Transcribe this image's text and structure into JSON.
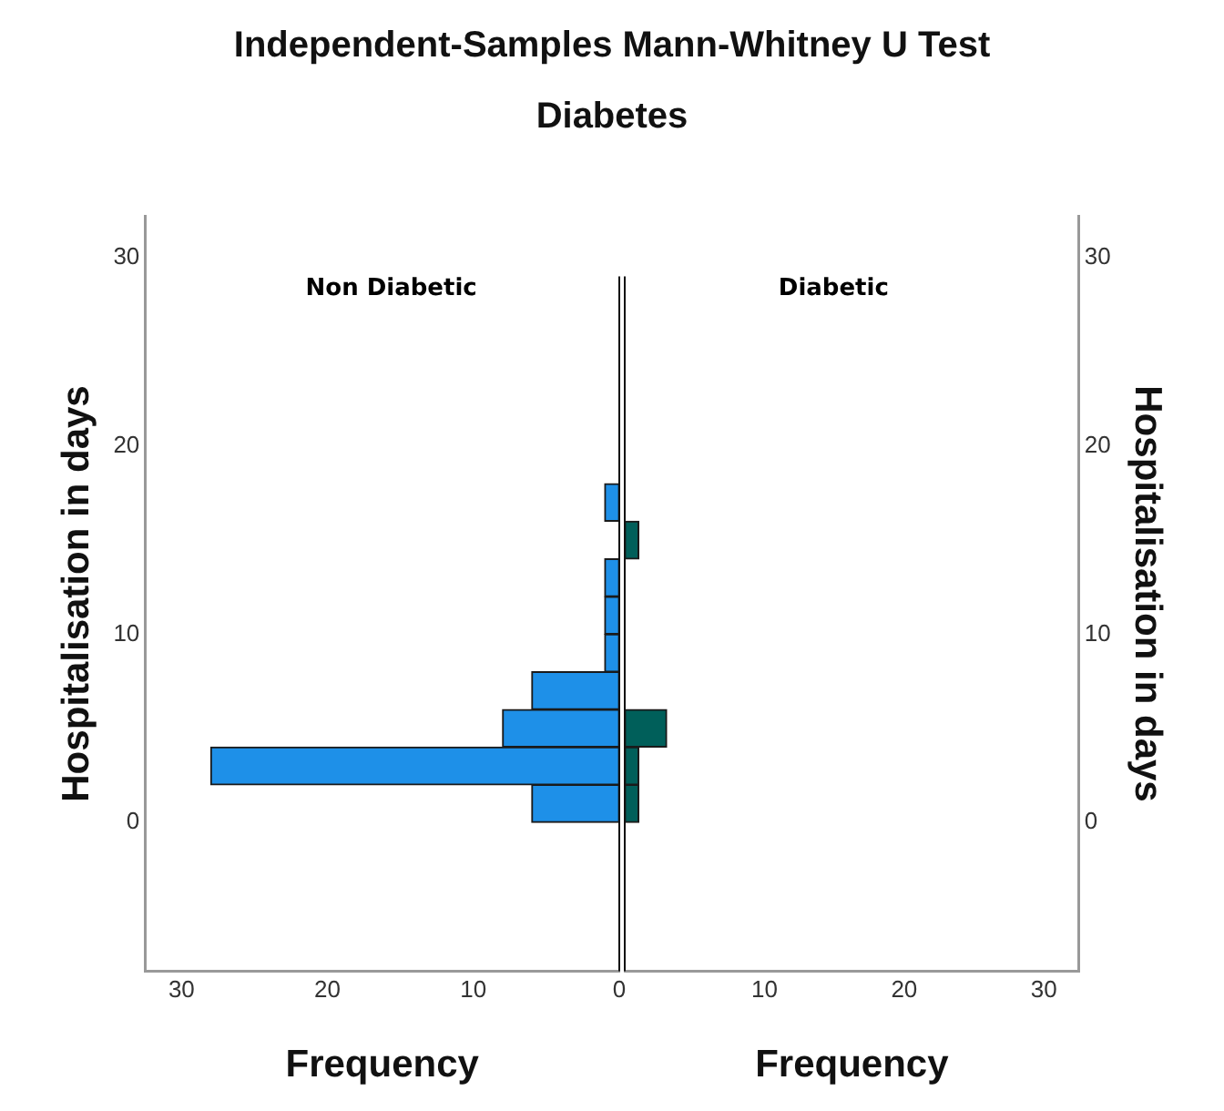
{
  "chart_data": [
    {
      "type": "histogram",
      "title": "Independent-Samples Mann-Whitney U Test",
      "subtitle": "Diabetes",
      "orientation": "horizontal",
      "bins": [
        0,
        2,
        4,
        6,
        8,
        10,
        12,
        14,
        16,
        18
      ],
      "values": [
        6,
        28,
        8,
        6,
        1,
        1,
        1,
        0,
        1
      ],
      "color": "#1e90e8",
      "xlim": [
        32.5,
        0
      ],
      "xticks": [
        0,
        10,
        20,
        30
      ],
      "ylim": [
        -7.9,
        32.2
      ],
      "yticks": [
        0,
        10,
        20,
        30
      ],
      "xlabel": "Frequency",
      "ylabel": "Hospitalisation in days",
      "annotations": [
        "Non Diabetic"
      ]
    },
    {
      "type": "histogram",
      "orientation": "horizontal",
      "bins": [
        0,
        2,
        4,
        6,
        8,
        10,
        12,
        14,
        16,
        18
      ],
      "values": [
        1,
        1,
        3,
        0,
        0,
        0,
        0,
        1,
        0
      ],
      "color": "#005f5a",
      "xlim": [
        0,
        32.5
      ],
      "xticks": [
        {
          "value": 0,
          "label": null
        },
        10,
        20,
        30
      ],
      "ylim": [
        -7.9,
        32.2
      ],
      "yticks": [
        0,
        10,
        20,
        30
      ],
      "xlabel": "Frequency",
      "ylabel": "Hospitalisation in days",
      "annotations": [
        "Diabetic"
      ]
    }
  ]
}
